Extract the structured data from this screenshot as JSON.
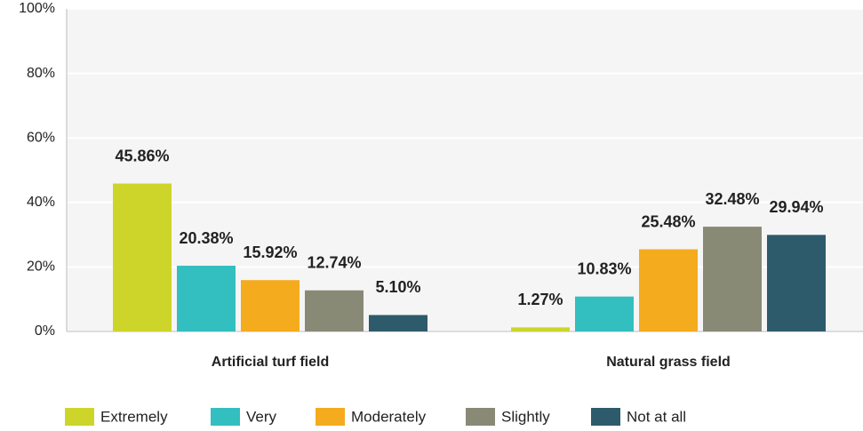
{
  "chart_data": {
    "type": "bar",
    "categories": [
      "Artificial turf field",
      "Natural grass field"
    ],
    "series": [
      {
        "name": "Extremely",
        "color": "#cdd52a",
        "values": [
          45.86,
          1.27
        ],
        "value_labels": [
          "45.86%",
          "1.27%"
        ]
      },
      {
        "name": "Very",
        "color": "#33bfc0",
        "values": [
          20.38,
          10.83
        ],
        "value_labels": [
          "20.38%",
          "10.83%"
        ]
      },
      {
        "name": "Moderately",
        "color": "#f5ab1e",
        "values": [
          15.92,
          25.48
        ],
        "value_labels": [
          "15.92%",
          "25.48%"
        ]
      },
      {
        "name": "Slightly",
        "color": "#888a76",
        "values": [
          12.74,
          32.48
        ],
        "value_labels": [
          "12.74%",
          "32.48%"
        ]
      },
      {
        "name": "Not at all",
        "color": "#2d5b6b",
        "values": [
          5.1,
          29.94
        ],
        "value_labels": [
          "5.10%",
          "29.94%"
        ]
      }
    ],
    "ylim": [
      0,
      100
    ],
    "yticks": [
      {
        "value": 0,
        "label": "0%"
      },
      {
        "value": 20,
        "label": "20%"
      },
      {
        "value": 40,
        "label": "40%"
      },
      {
        "value": 60,
        "label": "60%"
      },
      {
        "value": 80,
        "label": "80%"
      },
      {
        "value": 100,
        "label": "100%"
      }
    ],
    "grid": true,
    "legend": "bottom"
  }
}
